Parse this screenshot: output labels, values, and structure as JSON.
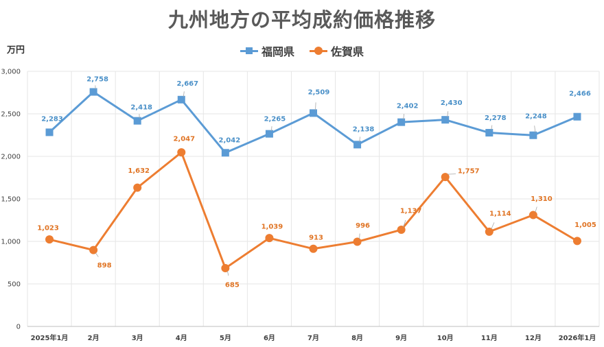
{
  "chart_data": {
    "type": "line",
    "title": "九州地方の平均成約価格推移",
    "ylabel": "万円",
    "xlabel": "",
    "ylim": [
      0,
      3000
    ],
    "yticks": [
      0,
      500,
      1000,
      1500,
      2000,
      2500,
      3000
    ],
    "ytick_labels": [
      "0",
      "500",
      "1,000",
      "1,500",
      "2,000",
      "2,500",
      "3,000"
    ],
    "grid": true,
    "legend_position": "top",
    "categories": [
      "2025年1月",
      "2月",
      "3月",
      "4月",
      "5月",
      "6月",
      "7月",
      "8月",
      "9月",
      "10月",
      "11月",
      "12月",
      "2026年1月"
    ],
    "series": [
      {
        "name": "福岡県",
        "color": "#5B9BD5",
        "marker": "square",
        "values": [
          2283,
          2758,
          2418,
          2667,
          2042,
          2265,
          2509,
          2138,
          2402,
          2430,
          2278,
          2248,
          2466
        ],
        "labels": [
          "2,283",
          "2,758",
          "2,418",
          "2,667",
          "2,042",
          "2,265",
          "2,509",
          "2,138",
          "2,402",
          "2,430",
          "2,278",
          "2,248",
          "2,466"
        ]
      },
      {
        "name": "佐賀県",
        "color": "#ED7D31",
        "marker": "circle",
        "values": [
          1023,
          898,
          1632,
          2047,
          685,
          1039,
          913,
          996,
          1137,
          1757,
          1114,
          1310,
          1005
        ],
        "labels": [
          "1,023",
          "898",
          "1,632",
          "2,047",
          "685",
          "1,039",
          "913",
          "996",
          "1,137",
          "1,757",
          "1,114",
          "1,310",
          "1,005"
        ]
      }
    ]
  }
}
